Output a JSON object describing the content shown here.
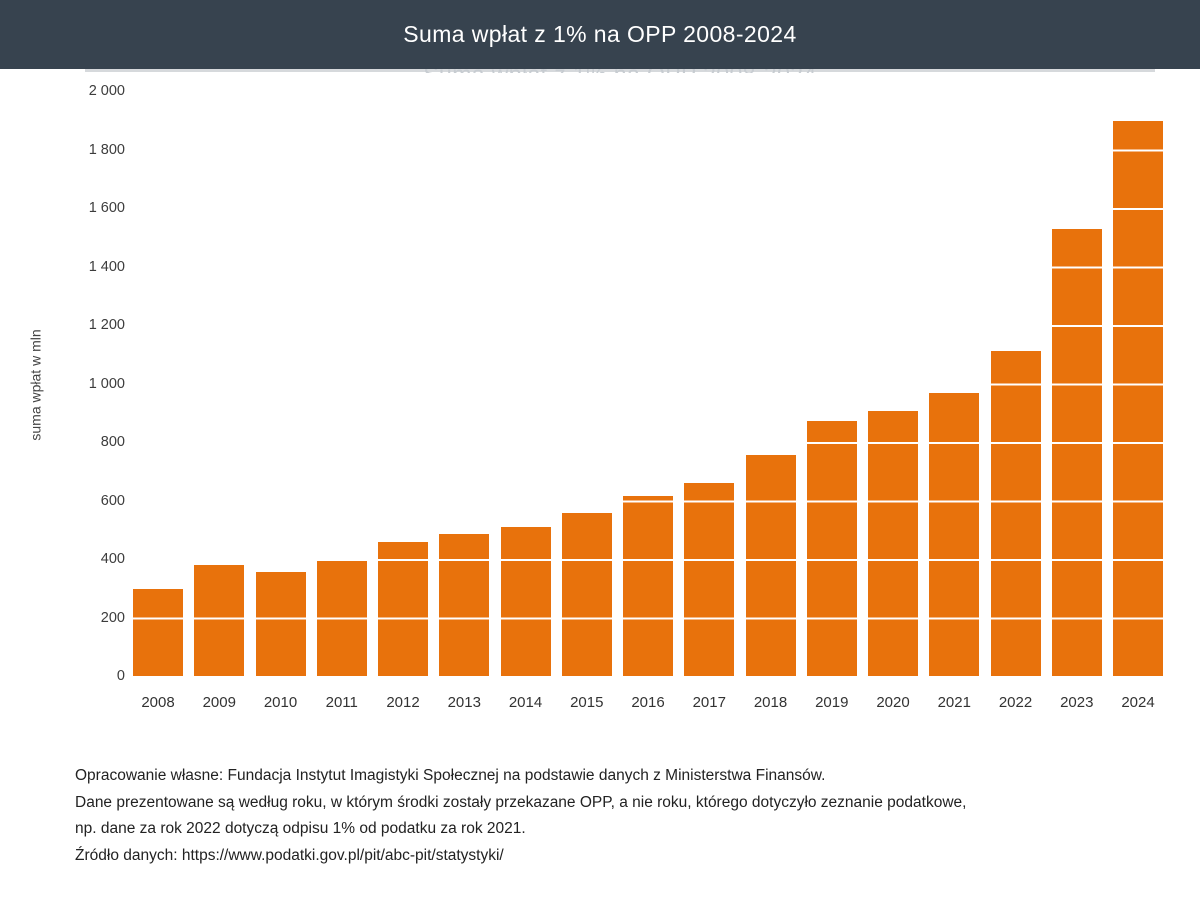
{
  "header": {
    "title": "Suma wpłat z 1% na OPP 2008-2024",
    "background": "#37434F",
    "text_color": "#FFFFFF"
  },
  "chart_data": {
    "type": "bar",
    "title": "Suma wpłat z 1% na OPP 2008-2024",
    "categories": [
      "2008",
      "2009",
      "2010",
      "2011",
      "2012",
      "2013",
      "2014",
      "2015",
      "2016",
      "2017",
      "2018",
      "2019",
      "2020",
      "2021",
      "2022",
      "2023",
      "2024"
    ],
    "values": [
      297,
      381,
      357,
      398,
      459,
      484,
      509,
      556,
      617,
      659,
      757,
      872,
      905,
      968,
      1111,
      1529,
      1899
    ],
    "xlabel": "",
    "ylabel": "suma wpłat w mln",
    "ylim": [
      0,
      2000
    ],
    "ytick_step": 200,
    "ytick_values": [
      0,
      200,
      400,
      600,
      800,
      1000,
      1200,
      1400,
      1600,
      1800,
      2000
    ],
    "ytick_labels": [
      "0",
      "200",
      "400",
      "600",
      "800",
      "1 000",
      "1 200",
      "1 400",
      "1 600",
      "1 800",
      "2 000"
    ],
    "bar_color": "#E8720C",
    "gridline_color": "#FFFFFF",
    "grid": "white horizontal lines drawn over bars every 200 units",
    "legend": "none",
    "background": "#FFFFFF"
  },
  "footer": {
    "lines": [
      "Opracowanie własne: Fundacja Instytut Imagistyki Społecznej na podstawie danych z Ministerstwa Finansów.",
      "Dane prezentowane są według roku, w którym środki zostały przekazane OPP, a nie roku, którego dotyczyło zeznanie podatkowe,",
      "np. dane za rok 2022 dotyczą odpisu 1% od podatku za rok 2021.",
      "Źródło danych: https://www.podatki.gov.pl/pit/abc-pit/statystyki/"
    ]
  }
}
